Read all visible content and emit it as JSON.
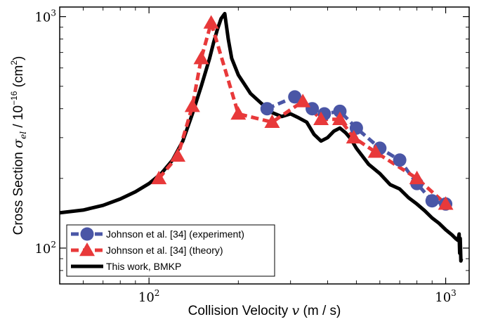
{
  "chart_data": {
    "type": "line",
    "xlabel": "Collision Velocity v (m / s)",
    "ylabel": "Cross Section σ_el / 10^-16 (cm^2)",
    "x_scale": "log",
    "y_scale": "log",
    "xlim": [
      50,
      1200
    ],
    "ylim": [
      70,
      1100
    ],
    "x_ticks": [
      {
        "value": 100,
        "base": "10",
        "exp": "2"
      },
      {
        "value": 1000,
        "base": "10",
        "exp": "3"
      }
    ],
    "y_ticks": [
      {
        "value": 100,
        "base": "10",
        "exp": "2"
      },
      {
        "value": 1000,
        "base": "10",
        "exp": "3"
      }
    ],
    "legend_position": "bottom-left",
    "series": [
      {
        "name": "Johnson et al. [34] (experiment)",
        "color": "#4a56a6",
        "marker": "circle",
        "linestyle": "dashed",
        "x": [
          250,
          310,
          355,
          390,
          440,
          500,
          600,
          700,
          800,
          900,
          1000
        ],
        "y": [
          400,
          450,
          400,
          380,
          390,
          330,
          270,
          240,
          190,
          160,
          155
        ]
      },
      {
        "name": "Johnson et al. [34] (theory)",
        "color": "#e8393a",
        "marker": "triangle",
        "linestyle": "dashed",
        "x": [
          108,
          125,
          140,
          150,
          162,
          200,
          260,
          330,
          380,
          440,
          490,
          580,
          800,
          1000
        ],
        "y": [
          200,
          250,
          410,
          660,
          940,
          380,
          350,
          430,
          360,
          360,
          300,
          260,
          200,
          155
        ]
      },
      {
        "name": "This work, BMKP",
        "color": "#000000",
        "marker": "none",
        "linestyle": "solid",
        "x": [
          50,
          60,
          70,
          80,
          90,
          100,
          110,
          120,
          130,
          140,
          150,
          160,
          165,
          170,
          175,
          180,
          185,
          190,
          200,
          220,
          240,
          260,
          280,
          300,
          320,
          340,
          360,
          380,
          400,
          420,
          440,
          460,
          480,
          500,
          550,
          600,
          650,
          700,
          750,
          800,
          850,
          900,
          950,
          1000,
          1050,
          1080,
          1100,
          1110,
          1115,
          1120,
          1125,
          1130
        ],
        "y": [
          142,
          146,
          153,
          163,
          175,
          190,
          210,
          240,
          290,
          380,
          500,
          660,
          770,
          880,
          980,
          1030,
          800,
          660,
          560,
          465,
          420,
          385,
          370,
          380,
          365,
          350,
          310,
          290,
          300,
          320,
          330,
          315,
          295,
          270,
          230,
          210,
          188,
          180,
          165,
          155,
          145,
          135,
          128,
          120,
          114,
          110,
          108,
          115,
          95,
          110,
          88,
          90
        ]
      }
    ]
  }
}
